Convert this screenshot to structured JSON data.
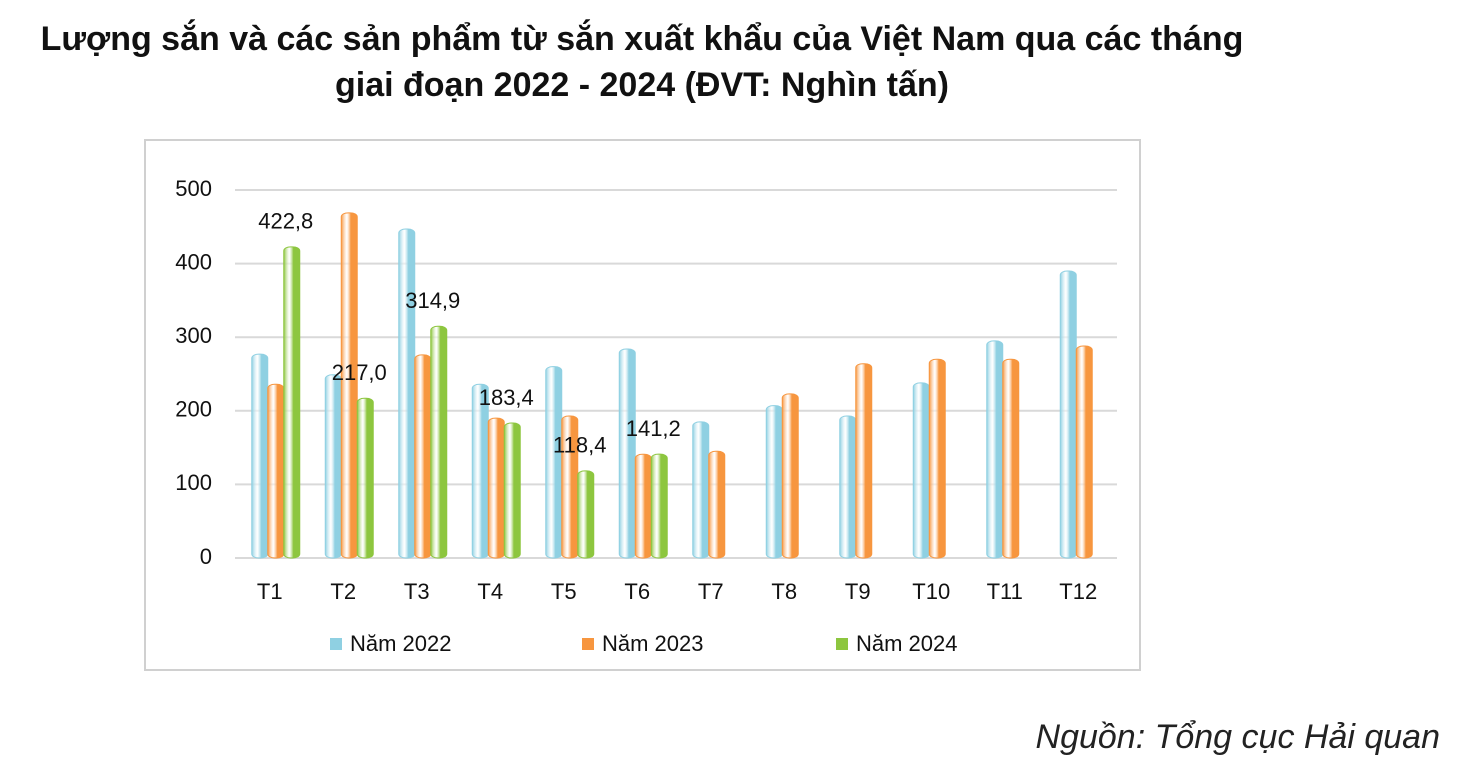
{
  "chart_data": {
    "type": "bar",
    "title": "Lượng sắn và các sản phẩm từ sắn xuất khẩu của Việt Nam qua các tháng giai đoạn 2022 - 2024 (ĐVT: Nghìn tấn)",
    "categories": [
      "T1",
      "T2",
      "T3",
      "T4",
      "T5",
      "T6",
      "T7",
      "T8",
      "T9",
      "T10",
      "T11",
      "T12"
    ],
    "series": [
      {
        "name": "Năm 2022",
        "color": "#8fd0e2",
        "values": [
          277,
          249,
          447,
          236,
          260,
          284,
          185,
          207,
          193,
          238,
          295,
          390
        ]
      },
      {
        "name": "Năm 2023",
        "color": "#f7963f",
        "values": [
          236,
          469,
          276,
          190,
          193,
          141,
          145,
          223,
          264,
          270,
          270,
          288
        ]
      },
      {
        "name": "Năm 2024",
        "color": "#8dc63f",
        "values": [
          422.8,
          217.0,
          314.9,
          183.4,
          118.4,
          141.2,
          null,
          null,
          null,
          null,
          null,
          null
        ],
        "value_labels": [
          "422,8",
          "217,0",
          "314,9",
          "183,4",
          "118,4",
          "141,2",
          null,
          null,
          null,
          null,
          null,
          null
        ]
      }
    ],
    "ylim": [
      0,
      500
    ],
    "yticks": [
      0,
      100,
      200,
      300,
      400,
      500
    ],
    "grid": true,
    "legend": "bottom",
    "source": "Nguồn: Tổng cục Hải quan"
  }
}
